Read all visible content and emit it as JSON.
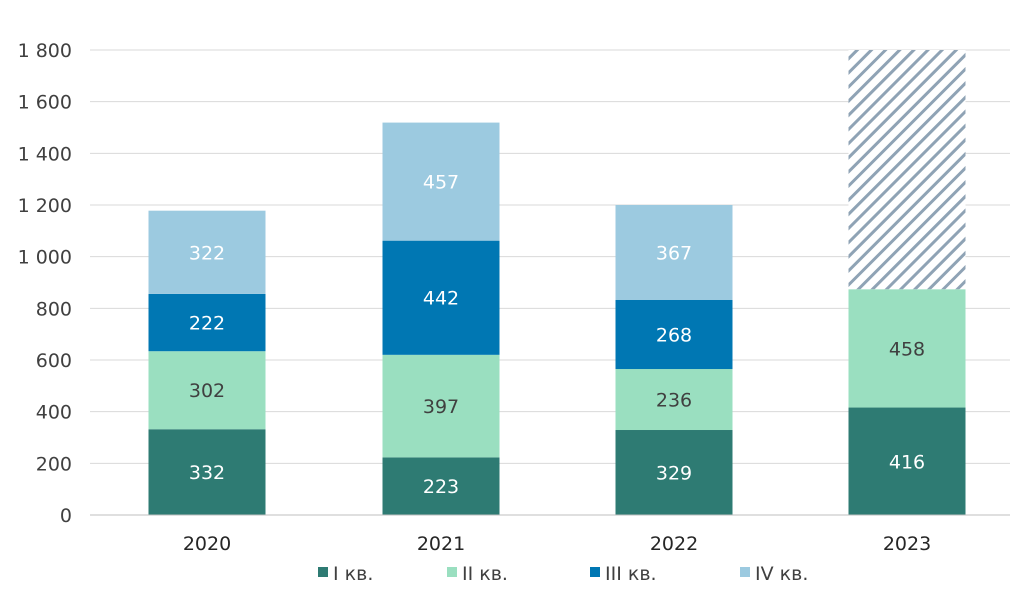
{
  "chart_data": {
    "type": "bar",
    "stacked": true,
    "categories": [
      "2020",
      "2021",
      "2022",
      "2023"
    ],
    "series": [
      {
        "name": "I кв.",
        "color": "#2e7b73",
        "label_color": "#ffffff",
        "values": [
          332,
          223,
          329,
          416
        ]
      },
      {
        "name": "II кв.",
        "color": "#9adfc0",
        "label_color": "#404040",
        "values": [
          302,
          397,
          236,
          458
        ]
      },
      {
        "name": "III кв.",
        "color": "#0077b3",
        "label_color": "#ffffff",
        "values": [
          222,
          442,
          268,
          null
        ]
      },
      {
        "name": "IV кв.",
        "color": "#9ccae0",
        "label_color": "#ffffff",
        "values": [
          322,
          457,
          367,
          null
        ]
      }
    ],
    "projection": {
      "category": "2023",
      "from": 874,
      "to": 1800,
      "pattern": "diagonal-hatch",
      "color": "#8fa3b5"
    },
    "ylim": [
      0,
      1800
    ],
    "yticks": [
      0,
      200,
      400,
      600,
      800,
      1000,
      1200,
      1400,
      1600,
      1800
    ],
    "ytick_labels": [
      "0",
      "200",
      "400",
      "600",
      "800",
      "1 000",
      "1 200",
      "1 400",
      "1 600",
      "1 800"
    ],
    "grid": true,
    "legend_position": "bottom"
  }
}
